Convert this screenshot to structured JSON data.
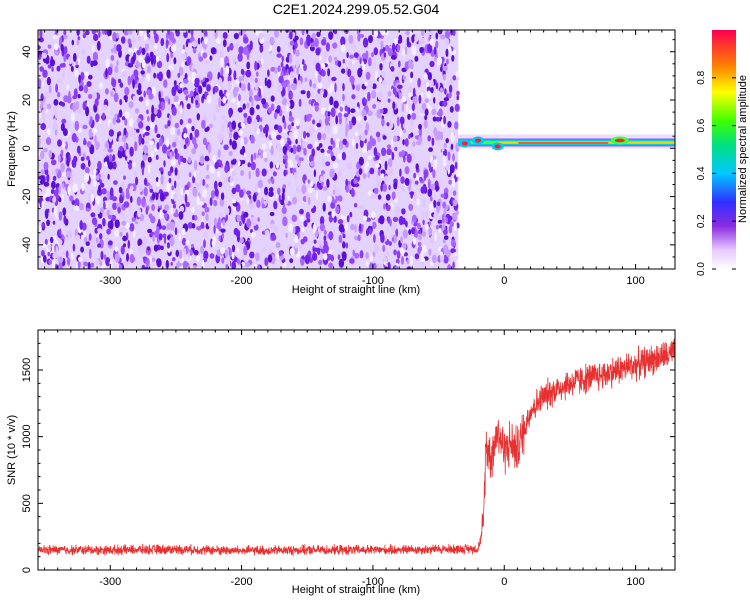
{
  "title": "C2E1.2024.299.05.52.G04",
  "colors": {
    "snr_line": "#e83030",
    "spectrogram_noise": "#7a30ff",
    "background": "#ffffff"
  },
  "chart_data": [
    {
      "type": "heatmap",
      "xlabel": "Height of straight line (km)",
      "ylabel": "Frequency (Hz)",
      "xlim": [
        -355,
        130
      ],
      "ylim": [
        -50,
        49
      ],
      "xticks": [
        -300,
        -200,
        -100,
        0,
        100
      ],
      "yticks": [
        -40,
        -20,
        0,
        20,
        40
      ],
      "colorbar": {
        "label": "Normalized spectral amplitude",
        "range": [
          0.0,
          1.0
        ],
        "ticks": [
          "0.0",
          "0.2",
          "0.4",
          "0.6",
          "0.8"
        ],
        "tick_values": [
          0.0,
          0.2,
          0.4,
          0.6,
          0.8
        ]
      },
      "noise_region_x": [
        -355,
        -35
      ],
      "signal": {
        "x_start": -35,
        "x_end": 130,
        "frequency_hz": 2,
        "peak_amplitude": 1.0
      }
    },
    {
      "type": "line",
      "xlabel": "Height of straight line (km)",
      "ylabel": "SNR (10 * v/v)",
      "xlim": [
        -355,
        130
      ],
      "ylim": [
        0,
        1800
      ],
      "xticks": [
        -300,
        -200,
        -100,
        0,
        100
      ],
      "yticks": [
        0,
        500,
        1000,
        1500
      ],
      "series": [
        {
          "x": [
            -355,
            -300,
            -250,
            -200,
            -150,
            -100,
            -50,
            -20,
            -16,
            -14,
            -10,
            -5,
            0,
            5,
            10,
            20,
            30,
            40,
            50,
            60,
            70,
            80,
            90,
            100,
            110,
            120,
            130
          ],
          "y": [
            150,
            150,
            155,
            145,
            150,
            150,
            155,
            160,
            300,
            950,
            850,
            1050,
            900,
            950,
            900,
            1200,
            1300,
            1360,
            1400,
            1430,
            1450,
            1480,
            1510,
            1540,
            1570,
            1600,
            1620
          ]
        }
      ]
    }
  ]
}
